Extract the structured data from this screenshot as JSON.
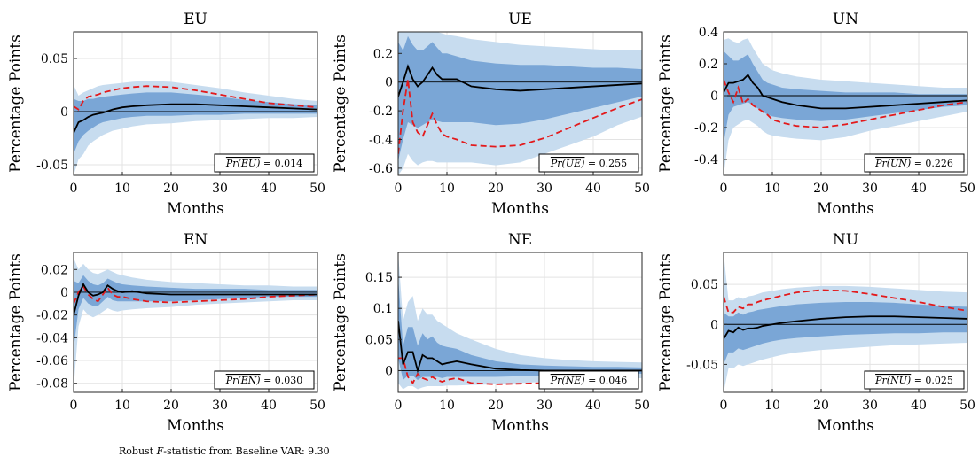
{
  "colors": {
    "inner_band": "#7aa6d6",
    "outer_band": "#c7dcef",
    "median_line": "#000000",
    "alt_line": "#e31a1c",
    "grid": "#e3e3e3"
  },
  "footnote": {
    "prefix": "Robust ",
    "var": "F",
    "suffix": "-statistic from Baseline VAR: 9.30"
  },
  "chart_data": [
    {
      "type": "line",
      "title": "EU",
      "xlabel": "Months",
      "ylabel": "Percentage Points",
      "xlim": [
        0,
        50
      ],
      "ylim": [
        -0.06,
        0.075
      ],
      "xticks": [
        0,
        10,
        20,
        30,
        40,
        50
      ],
      "yticks": [
        -0.05,
        0,
        0.05
      ],
      "ytick_labels": [
        "-0.05",
        "0",
        "0.05"
      ],
      "stat_label": "Pr(EU)",
      "stat_value": "0.014",
      "x": [
        0,
        1,
        2,
        3,
        4,
        5,
        6,
        8,
        10,
        12,
        15,
        20,
        25,
        30,
        35,
        40,
        45,
        50
      ],
      "median": [
        -0.02,
        -0.01,
        -0.008,
        -0.005,
        -0.003,
        -0.002,
        -0.001,
        0.002,
        0.004,
        0.005,
        0.006,
        0.007,
        0.007,
        0.006,
        0.005,
        0.004,
        0.003,
        0.002
      ],
      "alt": [
        0.005,
        0.002,
        0.01,
        0.014,
        0.015,
        0.016,
        0.018,
        0.02,
        0.022,
        0.023,
        0.024,
        0.023,
        0.02,
        0.016,
        0.012,
        0.008,
        0.006,
        0.004
      ],
      "inner_lo": [
        -0.04,
        -0.028,
        -0.022,
        -0.018,
        -0.015,
        -0.012,
        -0.01,
        -0.008,
        -0.006,
        -0.005,
        -0.004,
        -0.004,
        -0.003,
        -0.003,
        -0.002,
        -0.002,
        -0.002,
        -0.002
      ],
      "inner_hi": [
        0.012,
        0.01,
        0.01,
        0.012,
        0.012,
        0.013,
        0.014,
        0.015,
        0.016,
        0.017,
        0.018,
        0.018,
        0.016,
        0.014,
        0.011,
        0.009,
        0.007,
        0.006
      ],
      "outer_lo": [
        -0.06,
        -0.045,
        -0.04,
        -0.032,
        -0.028,
        -0.025,
        -0.022,
        -0.018,
        -0.016,
        -0.014,
        -0.012,
        -0.011,
        -0.009,
        -0.008,
        -0.007,
        -0.006,
        -0.006,
        -0.005
      ],
      "outer_hi": [
        0.025,
        0.015,
        0.018,
        0.02,
        0.022,
        0.024,
        0.025,
        0.026,
        0.027,
        0.028,
        0.029,
        0.028,
        0.025,
        0.022,
        0.018,
        0.015,
        0.012,
        0.01
      ]
    },
    {
      "type": "line",
      "title": "UE",
      "xlabel": "Months",
      "ylabel": "Percentage Points",
      "xlim": [
        0,
        50
      ],
      "ylim": [
        -0.65,
        0.35
      ],
      "xticks": [
        0,
        10,
        20,
        30,
        40,
        50
      ],
      "yticks": [
        -0.6,
        -0.4,
        -0.2,
        0,
        0.2
      ],
      "ytick_labels": [
        "-0.6",
        "-0.4",
        "-0.2",
        "0",
        "0.2"
      ],
      "stat_label": "Pr(UE)",
      "stat_value": "0.255",
      "x": [
        0,
        1,
        2,
        3,
        4,
        5,
        6,
        7,
        8,
        9,
        10,
        12,
        15,
        20,
        25,
        30,
        35,
        40,
        45,
        50
      ],
      "median": [
        -0.1,
        0.0,
        0.11,
        0.02,
        -0.03,
        0.0,
        0.05,
        0.1,
        0.05,
        0.02,
        0.02,
        0.02,
        -0.03,
        -0.05,
        -0.06,
        -0.05,
        -0.04,
        -0.03,
        -0.02,
        -0.01
      ],
      "alt": [
        -0.5,
        -0.2,
        0.02,
        -0.28,
        -0.35,
        -0.38,
        -0.3,
        -0.22,
        -0.3,
        -0.36,
        -0.38,
        -0.4,
        -0.44,
        -0.45,
        -0.44,
        -0.39,
        -0.32,
        -0.25,
        -0.18,
        -0.12
      ],
      "inner_lo": [
        -0.55,
        -0.4,
        -0.28,
        -0.3,
        -0.32,
        -0.3,
        -0.28,
        -0.26,
        -0.27,
        -0.28,
        -0.28,
        -0.28,
        -0.28,
        -0.3,
        -0.29,
        -0.26,
        -0.22,
        -0.18,
        -0.14,
        -0.1
      ],
      "inner_hi": [
        0.28,
        0.22,
        0.32,
        0.26,
        0.22,
        0.22,
        0.25,
        0.28,
        0.24,
        0.2,
        0.2,
        0.18,
        0.15,
        0.13,
        0.12,
        0.12,
        0.11,
        0.1,
        0.1,
        0.09
      ],
      "outer_lo": [
        -0.65,
        -0.6,
        -0.5,
        -0.55,
        -0.58,
        -0.56,
        -0.55,
        -0.55,
        -0.56,
        -0.56,
        -0.56,
        -0.56,
        -0.56,
        -0.58,
        -0.56,
        -0.5,
        -0.44,
        -0.38,
        -0.3,
        -0.24
      ],
      "outer_hi": [
        0.35,
        0.35,
        0.35,
        0.35,
        0.35,
        0.35,
        0.35,
        0.35,
        0.35,
        0.34,
        0.33,
        0.32,
        0.3,
        0.28,
        0.26,
        0.25,
        0.24,
        0.23,
        0.22,
        0.22
      ]
    },
    {
      "type": "line",
      "title": "UN",
      "xlabel": "Months",
      "ylabel": "Percentage Points",
      "xlim": [
        0,
        50
      ],
      "ylim": [
        -0.5,
        0.4
      ],
      "xticks": [
        0,
        10,
        20,
        30,
        40,
        50
      ],
      "yticks": [
        -0.4,
        -0.2,
        0,
        0.2,
        0.4
      ],
      "ytick_labels": [
        "-0.4",
        "-0.2",
        "0",
        "0.2",
        "0.4"
      ],
      "stat_label": "Pr(UN)",
      "stat_value": "0.226",
      "x": [
        0,
        1,
        2,
        3,
        4,
        5,
        6,
        7,
        8,
        9,
        10,
        12,
        15,
        20,
        25,
        30,
        35,
        40,
        45,
        50
      ],
      "median": [
        0.02,
        0.08,
        0.08,
        0.09,
        0.1,
        0.13,
        0.08,
        0.05,
        0.0,
        -0.01,
        -0.02,
        -0.04,
        -0.06,
        -0.08,
        -0.08,
        -0.07,
        -0.06,
        -0.05,
        -0.04,
        -0.03
      ],
      "alt": [
        0.1,
        0.02,
        -0.04,
        0.05,
        -0.05,
        -0.02,
        -0.06,
        -0.08,
        -0.1,
        -0.12,
        -0.15,
        -0.17,
        -0.19,
        -0.2,
        -0.18,
        -0.15,
        -0.12,
        -0.09,
        -0.06,
        -0.04
      ],
      "inner_lo": [
        -0.3,
        -0.12,
        -0.07,
        -0.06,
        -0.05,
        -0.04,
        -0.06,
        -0.08,
        -0.1,
        -0.12,
        -0.13,
        -0.14,
        -0.15,
        -0.16,
        -0.15,
        -0.13,
        -0.11,
        -0.09,
        -0.07,
        -0.06
      ],
      "inner_hi": [
        0.28,
        0.25,
        0.22,
        0.22,
        0.24,
        0.26,
        0.2,
        0.15,
        0.1,
        0.08,
        0.07,
        0.05,
        0.04,
        0.03,
        0.02,
        0.02,
        0.02,
        0.01,
        0.01,
        0.01
      ],
      "outer_lo": [
        -0.5,
        -0.28,
        -0.2,
        -0.18,
        -0.16,
        -0.15,
        -0.17,
        -0.19,
        -0.22,
        -0.24,
        -0.25,
        -0.26,
        -0.27,
        -0.28,
        -0.26,
        -0.22,
        -0.19,
        -0.16,
        -0.13,
        -0.1
      ],
      "outer_hi": [
        0.35,
        0.36,
        0.34,
        0.33,
        0.35,
        0.36,
        0.3,
        0.25,
        0.2,
        0.18,
        0.16,
        0.14,
        0.12,
        0.1,
        0.09,
        0.08,
        0.07,
        0.06,
        0.05,
        0.05
      ]
    },
    {
      "type": "line",
      "title": "EN",
      "xlabel": "Months",
      "ylabel": "Percentage Points",
      "xlim": [
        0,
        50
      ],
      "ylim": [
        -0.088,
        0.035
      ],
      "xticks": [
        0,
        10,
        20,
        30,
        40,
        50
      ],
      "yticks": [
        -0.08,
        -0.06,
        -0.04,
        -0.02,
        0,
        0.02
      ],
      "ytick_labels": [
        "-0.08",
        "-0.06",
        "-0.04",
        "-0.02",
        "0",
        "0.02"
      ],
      "stat_label": "Pr(EN)",
      "stat_value": "0.030",
      "x": [
        0,
        1,
        2,
        3,
        4,
        5,
        6,
        7,
        8,
        9,
        10,
        12,
        15,
        20,
        25,
        30,
        35,
        40,
        45,
        50
      ],
      "median": [
        -0.02,
        -0.003,
        0.007,
        0.0,
        -0.003,
        -0.002,
        0.0,
        0.006,
        0.003,
        0.001,
        0.0,
        0.001,
        -0.001,
        -0.002,
        -0.002,
        -0.002,
        -0.002,
        -0.002,
        -0.002,
        -0.002
      ],
      "alt": [
        -0.01,
        0.0,
        0.005,
        -0.002,
        -0.006,
        -0.008,
        -0.002,
        0.004,
        -0.002,
        -0.004,
        -0.004,
        -0.006,
        -0.008,
        -0.009,
        -0.008,
        -0.007,
        -0.006,
        -0.004,
        -0.003,
        -0.002
      ],
      "inner_lo": [
        -0.05,
        -0.015,
        -0.005,
        -0.01,
        -0.012,
        -0.012,
        -0.008,
        -0.004,
        -0.007,
        -0.008,
        -0.008,
        -0.008,
        -0.008,
        -0.008,
        -0.007,
        -0.006,
        -0.005,
        -0.004,
        -0.004,
        -0.004
      ],
      "inner_hi": [
        0.01,
        0.008,
        0.015,
        0.01,
        0.007,
        0.006,
        0.008,
        0.012,
        0.01,
        0.008,
        0.007,
        0.006,
        0.005,
        0.004,
        0.003,
        0.003,
        0.003,
        0.002,
        0.002,
        0.002
      ],
      "outer_lo": [
        -0.085,
        -0.03,
        -0.015,
        -0.02,
        -0.022,
        -0.02,
        -0.017,
        -0.014,
        -0.016,
        -0.017,
        -0.016,
        -0.015,
        -0.014,
        -0.013,
        -0.011,
        -0.01,
        -0.009,
        -0.008,
        -0.007,
        -0.007
      ],
      "outer_hi": [
        0.03,
        0.02,
        0.025,
        0.02,
        0.017,
        0.016,
        0.018,
        0.02,
        0.018,
        0.016,
        0.015,
        0.013,
        0.011,
        0.009,
        0.008,
        0.007,
        0.006,
        0.006,
        0.005,
        0.005
      ]
    },
    {
      "type": "line",
      "title": "NE",
      "xlabel": "Months",
      "ylabel": "Percentage Points",
      "xlim": [
        0,
        50
      ],
      "ylim": [
        -0.035,
        0.19
      ],
      "xticks": [
        0,
        10,
        20,
        30,
        40,
        50
      ],
      "yticks": [
        0,
        0.05,
        0.1,
        0.15
      ],
      "ytick_labels": [
        "0",
        "0.05",
        "0.1",
        "0.15"
      ],
      "stat_label": "Pr(NE)",
      "stat_value": "0.046",
      "x": [
        0,
        1,
        2,
        3,
        4,
        5,
        6,
        7,
        8,
        9,
        10,
        12,
        15,
        20,
        25,
        30,
        35,
        40,
        45,
        50
      ],
      "median": [
        0.08,
        0.01,
        0.03,
        0.03,
        0.0,
        0.025,
        0.02,
        0.02,
        0.015,
        0.01,
        0.012,
        0.015,
        0.01,
        0.003,
        0.001,
        0.0,
        0.0,
        0.0,
        0.0,
        0.0
      ],
      "alt": [
        0.02,
        0.02,
        -0.01,
        -0.02,
        -0.005,
        -0.012,
        -0.015,
        -0.01,
        -0.015,
        -0.018,
        -0.015,
        -0.012,
        -0.02,
        -0.022,
        -0.021,
        -0.02,
        -0.017,
        -0.014,
        -0.011,
        -0.008
      ],
      "inner_lo": [
        0.02,
        -0.015,
        -0.008,
        -0.008,
        -0.015,
        -0.01,
        -0.01,
        -0.01,
        -0.01,
        -0.012,
        -0.01,
        -0.01,
        -0.01,
        -0.01,
        -0.009,
        -0.008,
        -0.007,
        -0.006,
        -0.005,
        -0.005
      ],
      "inner_hi": [
        0.15,
        0.04,
        0.07,
        0.07,
        0.04,
        0.06,
        0.05,
        0.055,
        0.045,
        0.04,
        0.038,
        0.035,
        0.025,
        0.015,
        0.01,
        0.008,
        0.007,
        0.006,
        0.006,
        0.005
      ],
      "outer_lo": [
        -0.02,
        -0.03,
        -0.025,
        -0.025,
        -0.03,
        -0.027,
        -0.025,
        -0.025,
        -0.025,
        -0.025,
        -0.024,
        -0.024,
        -0.023,
        -0.022,
        -0.02,
        -0.018,
        -0.016,
        -0.014,
        -0.013,
        -0.012
      ],
      "outer_hi": [
        0.19,
        0.08,
        0.11,
        0.12,
        0.08,
        0.1,
        0.09,
        0.09,
        0.08,
        0.075,
        0.07,
        0.06,
        0.05,
        0.035,
        0.025,
        0.02,
        0.017,
        0.015,
        0.014,
        0.013
      ]
    },
    {
      "type": "line",
      "title": "NU",
      "xlabel": "Months",
      "ylabel": "Percentage Points",
      "xlim": [
        0,
        50
      ],
      "ylim": [
        -0.085,
        0.09
      ],
      "xticks": [
        0,
        10,
        20,
        30,
        40,
        50
      ],
      "yticks": [
        -0.05,
        0,
        0.05
      ],
      "ytick_labels": [
        "-0.05",
        "0",
        "0.05"
      ],
      "stat_label": "Pr(NU)",
      "stat_value": "0.025",
      "x": [
        0,
        1,
        2,
        3,
        4,
        5,
        6,
        7,
        8,
        10,
        12,
        15,
        20,
        25,
        30,
        35,
        40,
        45,
        50
      ],
      "median": [
        -0.018,
        -0.008,
        -0.01,
        -0.004,
        -0.007,
        -0.005,
        -0.005,
        -0.004,
        -0.002,
        0.0,
        0.002,
        0.004,
        0.007,
        0.009,
        0.01,
        0.01,
        0.009,
        0.008,
        0.007
      ],
      "alt": [
        0.035,
        0.015,
        0.015,
        0.022,
        0.02,
        0.025,
        0.025,
        0.028,
        0.03,
        0.033,
        0.036,
        0.04,
        0.043,
        0.042,
        0.038,
        0.033,
        0.028,
        0.022,
        0.017
      ],
      "inner_lo": [
        -0.05,
        -0.035,
        -0.035,
        -0.03,
        -0.032,
        -0.03,
        -0.028,
        -0.026,
        -0.024,
        -0.021,
        -0.019,
        -0.017,
        -0.015,
        -0.013,
        -0.012,
        -0.011,
        -0.011,
        -0.01,
        -0.01
      ],
      "inner_hi": [
        0.015,
        0.01,
        0.01,
        0.015,
        0.012,
        0.015,
        0.016,
        0.018,
        0.019,
        0.021,
        0.023,
        0.025,
        0.027,
        0.028,
        0.028,
        0.027,
        0.025,
        0.023,
        0.022
      ],
      "outer_lo": [
        -0.085,
        -0.055,
        -0.055,
        -0.05,
        -0.052,
        -0.05,
        -0.048,
        -0.046,
        -0.044,
        -0.041,
        -0.038,
        -0.035,
        -0.032,
        -0.03,
        -0.028,
        -0.026,
        -0.025,
        -0.024,
        -0.023
      ],
      "outer_hi": [
        0.09,
        0.03,
        0.03,
        0.034,
        0.032,
        0.035,
        0.036,
        0.038,
        0.04,
        0.042,
        0.044,
        0.046,
        0.048,
        0.048,
        0.047,
        0.045,
        0.043,
        0.041,
        0.04
      ]
    }
  ]
}
